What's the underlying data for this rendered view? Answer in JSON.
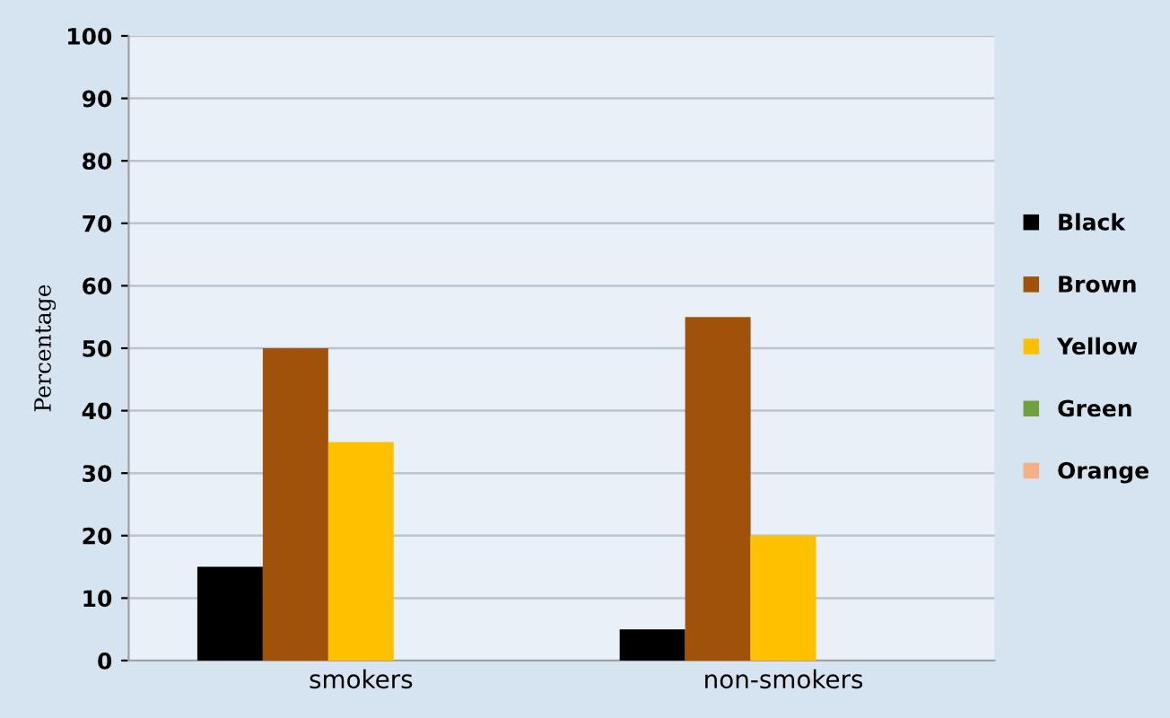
{
  "chart_data": {
    "type": "bar",
    "ylabel": "Percentage",
    "categories": [
      "smokers",
      "non-smokers"
    ],
    "series": [
      {
        "name": "Black",
        "color": "#000000",
        "values": [
          15,
          5
        ]
      },
      {
        "name": "Brown",
        "color": "#a0520a",
        "values": [
          50,
          55
        ]
      },
      {
        "name": "Yellow",
        "color": "#ffc000",
        "values": [
          35,
          20
        ]
      },
      {
        "name": "Green",
        "color": "#70a040",
        "values": [
          0,
          0
        ]
      },
      {
        "name": "Orange",
        "color": "#f4b183",
        "values": [
          0,
          0
        ]
      }
    ],
    "ylim": [
      0,
      100
    ],
    "yticks": [
      0,
      10,
      20,
      30,
      40,
      50,
      60,
      70,
      80,
      90,
      100
    ],
    "grid": "y",
    "legend": "right"
  }
}
